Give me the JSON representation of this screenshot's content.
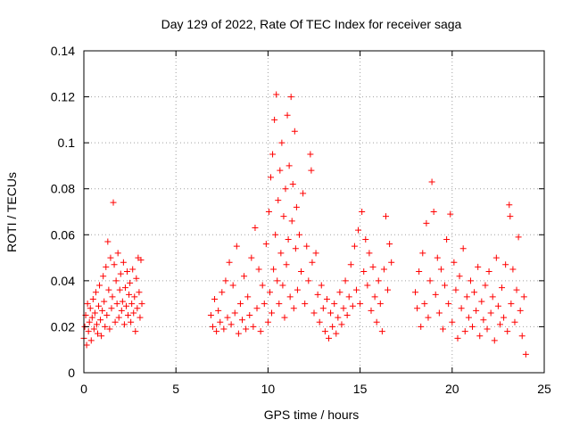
{
  "chart_data": {
    "type": "scatter",
    "title": "Day 129 of 2022, Rate Of TEC Index for receiver saga",
    "xlabel": "GPS time / hours",
    "ylabel": "ROTI / TECUs",
    "xlim": [
      0,
      25
    ],
    "ylim": [
      0,
      0.14
    ],
    "x_ticks": [
      "0",
      "5",
      "10",
      "15",
      "20",
      "25"
    ],
    "y_ticks": [
      "0",
      "0.02",
      "0.04",
      "0.06",
      "0.08",
      "0.1",
      "0.12",
      "0.14"
    ],
    "grid": true,
    "marker": "+",
    "color": "#ff0000",
    "series": [
      {
        "points": [
          [
            0.0,
            0.015
          ],
          [
            0.05,
            0.02
          ],
          [
            0.1,
            0.025
          ],
          [
            0.15,
            0.012
          ],
          [
            0.2,
            0.03
          ],
          [
            0.25,
            0.018
          ],
          [
            0.3,
            0.022
          ],
          [
            0.35,
            0.028
          ],
          [
            0.4,
            0.014
          ],
          [
            0.45,
            0.024
          ],
          [
            0.5,
            0.032
          ],
          [
            0.55,
            0.019
          ],
          [
            0.6,
            0.026
          ],
          [
            0.65,
            0.035
          ],
          [
            0.7,
            0.021
          ],
          [
            0.75,
            0.017
          ],
          [
            0.8,
            0.029
          ],
          [
            0.85,
            0.038
          ],
          [
            0.9,
            0.023
          ],
          [
            0.95,
            0.016
          ],
          [
            1.0,
            0.027
          ],
          [
            1.05,
            0.042
          ],
          [
            1.1,
            0.031
          ],
          [
            1.15,
            0.02
          ],
          [
            1.2,
            0.046
          ],
          [
            1.25,
            0.025
          ],
          [
            1.3,
            0.057
          ],
          [
            1.35,
            0.036
          ],
          [
            1.4,
            0.019
          ],
          [
            1.45,
            0.05
          ],
          [
            1.5,
            0.028
          ],
          [
            1.55,
            0.033
          ],
          [
            1.6,
            0.074
          ],
          [
            1.65,
            0.047
          ],
          [
            1.7,
            0.022
          ],
          [
            1.75,
            0.04
          ],
          [
            1.8,
            0.03
          ],
          [
            1.85,
            0.052
          ],
          [
            1.9,
            0.024
          ],
          [
            1.95,
            0.036
          ],
          [
            2.0,
            0.043
          ],
          [
            2.05,
            0.027
          ],
          [
            2.1,
            0.031
          ],
          [
            2.15,
            0.048
          ],
          [
            2.2,
            0.021
          ],
          [
            2.25,
            0.037
          ],
          [
            2.3,
            0.029
          ],
          [
            2.35,
            0.044
          ],
          [
            2.4,
            0.025
          ],
          [
            2.45,
            0.034
          ],
          [
            2.5,
            0.039
          ],
          [
            2.55,
            0.022
          ],
          [
            2.6,
            0.03
          ],
          [
            2.65,
            0.045
          ],
          [
            2.7,
            0.026
          ],
          [
            2.75,
            0.033
          ],
          [
            2.8,
            0.018
          ],
          [
            2.85,
            0.041
          ],
          [
            2.9,
            0.028
          ],
          [
            2.95,
            0.05
          ],
          [
            3.0,
            0.035
          ],
          [
            3.05,
            0.024
          ],
          [
            3.1,
            0.049
          ],
          [
            3.15,
            0.03
          ],
          [
            6.9,
            0.025
          ],
          [
            7.0,
            0.02
          ],
          [
            7.1,
            0.032
          ],
          [
            7.2,
            0.018
          ],
          [
            7.3,
            0.027
          ],
          [
            7.4,
            0.022
          ],
          [
            7.5,
            0.035
          ],
          [
            7.6,
            0.019
          ],
          [
            7.7,
            0.04
          ],
          [
            7.8,
            0.024
          ],
          [
            7.9,
            0.048
          ],
          [
            8.0,
            0.021
          ],
          [
            8.1,
            0.038
          ],
          [
            8.2,
            0.026
          ],
          [
            8.3,
            0.055
          ],
          [
            8.4,
            0.017
          ],
          [
            8.5,
            0.03
          ],
          [
            8.6,
            0.023
          ],
          [
            8.7,
            0.042
          ],
          [
            8.8,
            0.019
          ],
          [
            8.9,
            0.033
          ],
          [
            9.0,
            0.025
          ],
          [
            9.1,
            0.05
          ],
          [
            9.2,
            0.02
          ],
          [
            9.3,
            0.063
          ],
          [
            9.4,
            0.028
          ],
          [
            9.5,
            0.045
          ],
          [
            9.6,
            0.018
          ],
          [
            9.7,
            0.038
          ],
          [
            9.8,
            0.03
          ],
          [
            9.9,
            0.056
          ],
          [
            10.0,
            0.022
          ],
          [
            10.05,
            0.07
          ],
          [
            10.1,
            0.035
          ],
          [
            10.15,
            0.085
          ],
          [
            10.2,
            0.026
          ],
          [
            10.25,
            0.095
          ],
          [
            10.3,
            0.045
          ],
          [
            10.35,
            0.11
          ],
          [
            10.4,
            0.06
          ],
          [
            10.45,
            0.121
          ],
          [
            10.5,
            0.04
          ],
          [
            10.55,
            0.075
          ],
          [
            10.6,
            0.03
          ],
          [
            10.65,
            0.088
          ],
          [
            10.7,
            0.052
          ],
          [
            10.75,
            0.1
          ],
          [
            10.8,
            0.038
          ],
          [
            10.85,
            0.068
          ],
          [
            10.9,
            0.024
          ],
          [
            10.95,
            0.08
          ],
          [
            11.0,
            0.047
          ],
          [
            11.05,
            0.112
          ],
          [
            11.1,
            0.058
          ],
          [
            11.15,
            0.09
          ],
          [
            11.2,
            0.033
          ],
          [
            11.25,
            0.12
          ],
          [
            11.3,
            0.066
          ],
          [
            11.35,
            0.082
          ],
          [
            11.4,
            0.028
          ],
          [
            11.45,
            0.105
          ],
          [
            11.5,
            0.054
          ],
          [
            11.55,
            0.072
          ],
          [
            11.6,
            0.036
          ],
          [
            11.7,
            0.06
          ],
          [
            11.8,
            0.044
          ],
          [
            11.9,
            0.078
          ],
          [
            12.0,
            0.03
          ],
          [
            12.1,
            0.055
          ],
          [
            12.2,
            0.04
          ],
          [
            12.3,
            0.095
          ],
          [
            12.35,
            0.088
          ],
          [
            12.4,
            0.048
          ],
          [
            12.5,
            0.026
          ],
          [
            12.6,
            0.052
          ],
          [
            12.7,
            0.034
          ],
          [
            12.8,
            0.022
          ],
          [
            12.9,
            0.038
          ],
          [
            13.0,
            0.028
          ],
          [
            13.1,
            0.018
          ],
          [
            13.2,
            0.032
          ],
          [
            13.3,
            0.015
          ],
          [
            13.4,
            0.026
          ],
          [
            13.5,
            0.02
          ],
          [
            13.6,
            0.03
          ],
          [
            13.7,
            0.017
          ],
          [
            13.8,
            0.024
          ],
          [
            13.9,
            0.035
          ],
          [
            14.0,
            0.021
          ],
          [
            14.1,
            0.028
          ],
          [
            14.2,
            0.04
          ],
          [
            14.3,
            0.025
          ],
          [
            14.4,
            0.033
          ],
          [
            14.5,
            0.047
          ],
          [
            14.6,
            0.029
          ],
          [
            14.7,
            0.055
          ],
          [
            14.8,
            0.036
          ],
          [
            14.9,
            0.062
          ],
          [
            15.0,
            0.03
          ],
          [
            15.1,
            0.07
          ],
          [
            15.2,
            0.044
          ],
          [
            15.3,
            0.058
          ],
          [
            15.4,
            0.038
          ],
          [
            15.5,
            0.052
          ],
          [
            15.6,
            0.027
          ],
          [
            15.7,
            0.046
          ],
          [
            15.8,
            0.033
          ],
          [
            15.9,
            0.022
          ],
          [
            16.0,
            0.04
          ],
          [
            16.1,
            0.03
          ],
          [
            16.2,
            0.018
          ],
          [
            16.3,
            0.045
          ],
          [
            16.4,
            0.068
          ],
          [
            16.5,
            0.036
          ],
          [
            16.6,
            0.056
          ],
          [
            16.7,
            0.048
          ],
          [
            18.0,
            0.035
          ],
          [
            18.1,
            0.028
          ],
          [
            18.2,
            0.044
          ],
          [
            18.3,
            0.02
          ],
          [
            18.4,
            0.052
          ],
          [
            18.5,
            0.03
          ],
          [
            18.6,
            0.065
          ],
          [
            18.7,
            0.024
          ],
          [
            18.8,
            0.04
          ],
          [
            18.9,
            0.083
          ],
          [
            19.0,
            0.07
          ],
          [
            19.1,
            0.034
          ],
          [
            19.2,
            0.05
          ],
          [
            19.3,
            0.026
          ],
          [
            19.4,
            0.045
          ],
          [
            19.5,
            0.019
          ],
          [
            19.6,
            0.038
          ],
          [
            19.7,
            0.058
          ],
          [
            19.8,
            0.03
          ],
          [
            19.9,
            0.069
          ],
          [
            20.0,
            0.022
          ],
          [
            20.1,
            0.048
          ],
          [
            20.2,
            0.036
          ],
          [
            20.3,
            0.015
          ],
          [
            20.4,
            0.042
          ],
          [
            20.5,
            0.028
          ],
          [
            20.6,
            0.054
          ],
          [
            20.7,
            0.018
          ],
          [
            20.8,
            0.033
          ],
          [
            20.9,
            0.024
          ],
          [
            21.0,
            0.04
          ],
          [
            21.1,
            0.02
          ],
          [
            21.2,
            0.035
          ],
          [
            21.3,
            0.027
          ],
          [
            21.4,
            0.046
          ],
          [
            21.5,
            0.016
          ],
          [
            21.6,
            0.031
          ],
          [
            21.7,
            0.023
          ],
          [
            21.8,
            0.038
          ],
          [
            21.9,
            0.019
          ],
          [
            22.0,
            0.044
          ],
          [
            22.1,
            0.026
          ],
          [
            22.2,
            0.033
          ],
          [
            22.3,
            0.014
          ],
          [
            22.4,
            0.05
          ],
          [
            22.5,
            0.029
          ],
          [
            22.6,
            0.021
          ],
          [
            22.7,
            0.037
          ],
          [
            22.8,
            0.024
          ],
          [
            22.9,
            0.047
          ],
          [
            23.0,
            0.018
          ],
          [
            23.1,
            0.073
          ],
          [
            23.15,
            0.068
          ],
          [
            23.2,
            0.03
          ],
          [
            23.3,
            0.045
          ],
          [
            23.4,
            0.022
          ],
          [
            23.5,
            0.036
          ],
          [
            23.6,
            0.059
          ],
          [
            23.7,
            0.027
          ],
          [
            23.8,
            0.016
          ],
          [
            23.9,
            0.033
          ],
          [
            24.0,
            0.008
          ]
        ]
      }
    ]
  }
}
